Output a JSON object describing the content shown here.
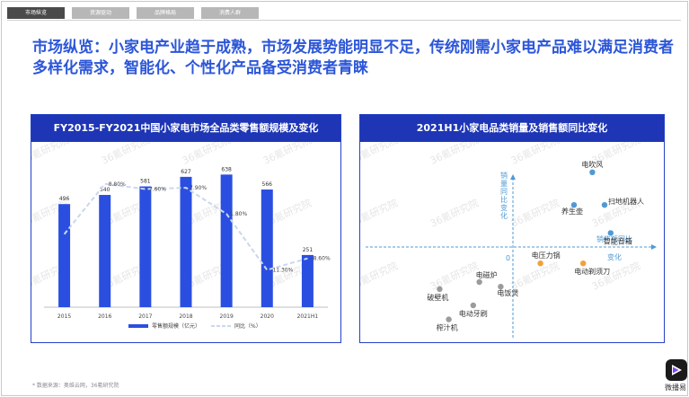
{
  "tabs": [
    {
      "label": "市场纵览",
      "active": true
    },
    {
      "label": "资源驱动",
      "active": false
    },
    {
      "label": "品牌格局",
      "active": false
    },
    {
      "label": "消费人群",
      "active": false
    }
  ],
  "headline": "市场纵览：小家电产业趋于成熟，市场发展势能明显不足，传统刚需小家电产品难以满足消费者多样化需求，智能化、个性化产品备受消费者青睐",
  "left_panel": {
    "title": "FY2015-FY2021中国小家电市场全品类零售额规模及变化"
  },
  "right_panel": {
    "title": "2021H1小家电品类销量及销售额同比变化"
  },
  "chart_data": [
    {
      "type": "bar",
      "title": "FY2015-FY2021中国小家电市场全品类零售额规模及变化",
      "categories": [
        "2015",
        "2016",
        "2017",
        "2018",
        "2019",
        "2020",
        "2021H1"
      ],
      "series": [
        {
          "name": "零售额规模（亿元）",
          "values": [
            496,
            540,
            581,
            627,
            638,
            566,
            251
          ],
          "value_labels": [
            "496",
            "540",
            "581",
            "627",
            "638",
            "566",
            "251"
          ]
        },
        {
          "name": "同比（%）",
          "values": [
            null,
            8.8,
            7.6,
            7.9,
            1.8,
            -11.3,
            -8.6
          ],
          "value_labels": [
            "",
            "8.80%",
            "7.60%",
            "7.90%",
            "1.80%",
            "-11.30%",
            "-8.60%"
          ]
        }
      ],
      "ylim": [
        0,
        700
      ],
      "y2lim": [
        -20,
        14
      ],
      "legend": "bottom",
      "grid": false
    },
    {
      "type": "scatter",
      "title": "2021H1小家电品类销量及销售额同比变化",
      "xlabel": "销售额同比变化",
      "ylabel": "销量同比变化",
      "origin_label": "0",
      "points": [
        {
          "label": "电吹风",
          "x": 1.3,
          "y": 1.6,
          "color": "#4f9ad6"
        },
        {
          "label": "养生壶",
          "x": 1.0,
          "y": 0.9,
          "color": "#4f9ad6"
        },
        {
          "label": "扫地机器人",
          "x": 1.5,
          "y": 0.9,
          "color": "#4f9ad6"
        },
        {
          "label": "智能音箱",
          "x": 1.6,
          "y": 0.3,
          "color": "#4f9ad6"
        },
        {
          "label": "电压力锅",
          "x": 0.45,
          "y": -0.35,
          "color": "#f2a03a"
        },
        {
          "label": "电动剃须刀",
          "x": 1.15,
          "y": -0.35,
          "color": "#f2a03a"
        },
        {
          "label": "电磁炉",
          "x": -0.55,
          "y": -0.75,
          "color": "#9b9b9b"
        },
        {
          "label": "电饭煲",
          "x": -0.2,
          "y": -0.85,
          "color": "#9b9b9b"
        },
        {
          "label": "破壁机",
          "x": -1.2,
          "y": -0.9,
          "color": "#9b9b9b"
        },
        {
          "label": "电动牙刷",
          "x": -0.65,
          "y": -1.25,
          "color": "#9b9b9b"
        },
        {
          "label": "榨汁机",
          "x": -1.05,
          "y": -1.55,
          "color": "#9b9b9b"
        }
      ],
      "xlim": [
        -2,
        2
      ],
      "ylim": [
        -2,
        2
      ]
    }
  ],
  "footer": "*  数据来源：奥维云网，36氪研究院",
  "watermark": "36氪研究院",
  "logo": {
    "text": "微播易"
  },
  "colors": {
    "accent": "#2c56d8",
    "bar": "#2a4fe0",
    "panel_border": "#2441c8",
    "panel_title_bg": "#1e36b5",
    "yoy_line": "#c9d7ef"
  }
}
